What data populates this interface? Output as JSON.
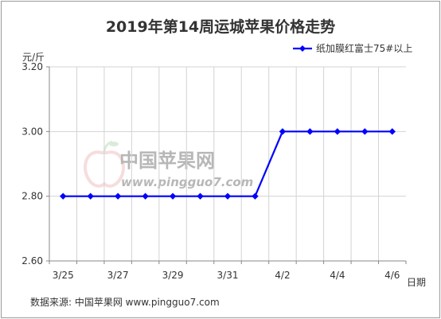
{
  "chart_data": {
    "type": "line",
    "title": "2019年第14周运城苹果价格走势",
    "ylabel": "元/斤",
    "xlabel": "日期",
    "categories": [
      "3/25",
      "3/26",
      "3/27",
      "3/28",
      "3/29",
      "3/30",
      "3/31",
      "4/1",
      "4/2",
      "4/3",
      "4/4",
      "4/5",
      "4/6"
    ],
    "x_tick_labels": [
      "3/25",
      "",
      "3/27",
      "",
      "3/29",
      "",
      "3/31",
      "",
      "4/2",
      "",
      "4/4",
      "",
      "4/6"
    ],
    "y_tick_labels": [
      "2.60",
      "2.80",
      "3.00",
      "3.20"
    ],
    "ylim": [
      2.6,
      3.2
    ],
    "grid": true,
    "legend_position": "top-right",
    "series": [
      {
        "name": "纸加膜红富士75#以上",
        "values": [
          2.8,
          2.8,
          2.8,
          2.8,
          2.8,
          2.8,
          2.8,
          2.8,
          3.0,
          3.0,
          3.0,
          3.0,
          3.0
        ]
      }
    ]
  },
  "watermark": {
    "text": "中国苹果网",
    "url": "www.pingguo7.com"
  },
  "source": "数据来源: 中国苹果网 www.pingguo7.com",
  "colors": {
    "series": "#0000ff",
    "grid": "#d3d3d3",
    "axis": "#888888"
  }
}
